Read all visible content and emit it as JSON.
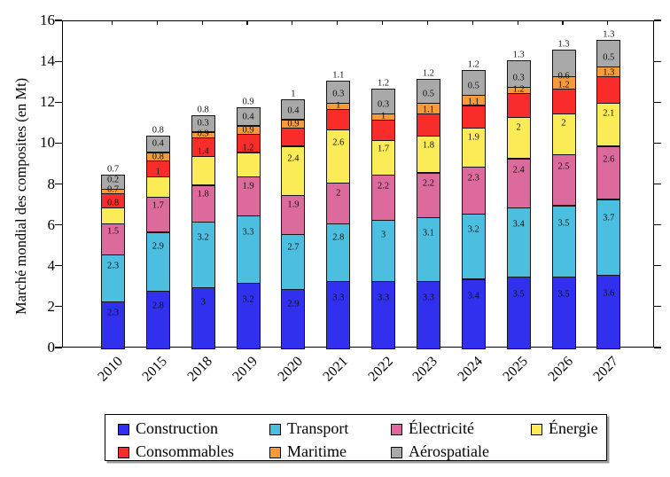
{
  "chart_data": {
    "type": "bar",
    "stacked": true,
    "title": "",
    "ylabel": "Marché mondial des composites (en Mt)",
    "xlabel": "",
    "ylim": [
      0,
      16
    ],
    "yticks": [
      0,
      2,
      4,
      6,
      8,
      10,
      12,
      14,
      16
    ],
    "grid": false,
    "legend_position": "below",
    "categories": [
      "2010",
      "2015",
      "2018",
      "2019",
      "2020",
      "2021",
      "2022",
      "2023",
      "2024",
      "2025",
      "2026",
      "2027"
    ],
    "series": [
      {
        "name": "Construction",
        "color": "#3030ee",
        "values": [
          2.3,
          2.8,
          3,
          3.2,
          2.9,
          3.3,
          3.3,
          3.3,
          3.4,
          3.5,
          3.5,
          3.6
        ]
      },
      {
        "name": "Transport",
        "color": "#4cbfe0",
        "values": [
          2.3,
          2.9,
          3.2,
          3.3,
          2.7,
          2.8,
          3,
          3.1,
          3.2,
          3.4,
          3.5,
          3.7
        ]
      },
      {
        "name": "Électricité",
        "color": "#dd6a9c",
        "values": [
          1.5,
          1.7,
          1.8,
          1.9,
          1.9,
          2,
          2.2,
          2.2,
          2.3,
          2.4,
          2.5,
          2.6
        ]
      },
      {
        "name": "Énergie",
        "color": "#fbeb57",
        "values": [
          0.8,
          1,
          1.4,
          1.2,
          2.4,
          2.6,
          1.7,
          1.8,
          1.9,
          2,
          2,
          2.1
        ]
      },
      {
        "name": "Consommables",
        "color": "#f92c2c",
        "values": [
          0.7,
          0.8,
          0.9,
          0.9,
          0.9,
          1,
          1,
          1.1,
          1.1,
          1.2,
          1.2,
          1.3
        ]
      },
      {
        "name": "Maritime",
        "color": "#f89a38",
        "values": [
          0.2,
          0.4,
          0.3,
          0.4,
          0.4,
          0.3,
          0.3,
          0.5,
          0.5,
          0.3,
          0.6,
          0.5
        ]
      },
      {
        "name": "Aérospatiale",
        "color": "#a9a9a9",
        "values": [
          0.7,
          0.8,
          0.8,
          0.9,
          1,
          1.1,
          1.2,
          1.2,
          1.2,
          1.3,
          1.3,
          1.3
        ]
      }
    ],
    "legend_rows": [
      [
        "Construction",
        "Transport",
        "Électricité",
        "Énergie"
      ],
      [
        "Consommables",
        "Maritime",
        "Aérospatiale"
      ]
    ]
  }
}
